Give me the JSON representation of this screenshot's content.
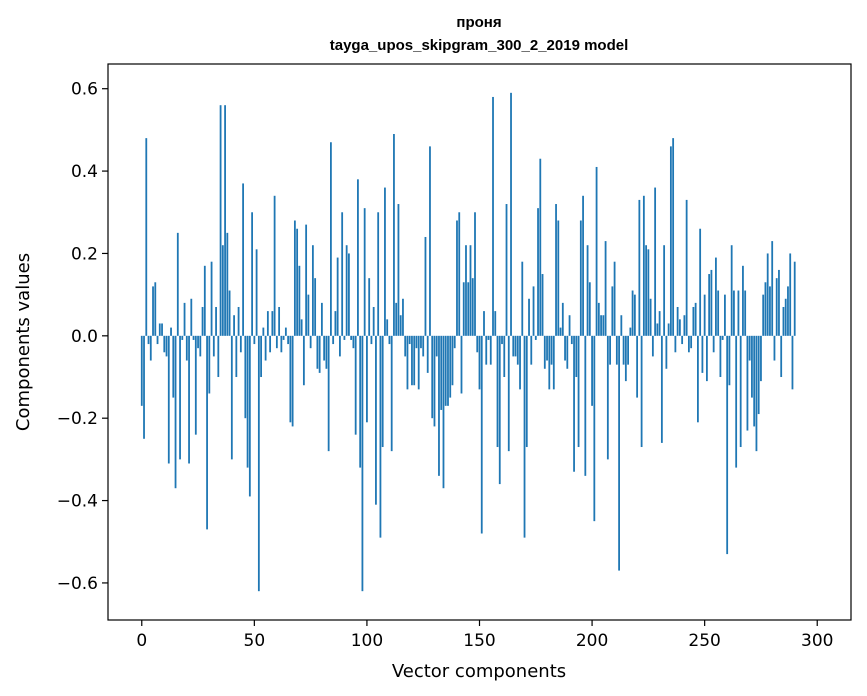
{
  "chart_data": {
    "type": "bar",
    "title": "проня",
    "subtitle": "tayga_upos_skipgram_300_2_2019 model",
    "xlabel": "Vector components",
    "ylabel": "Components values",
    "xlim": [
      -15,
      315
    ],
    "ylim": [
      -0.69,
      0.66
    ],
    "xticks": [
      0,
      50,
      100,
      150,
      200,
      250,
      300
    ],
    "yticks": [
      -0.6,
      -0.4,
      -0.2,
      0.0,
      0.2,
      0.4,
      0.6
    ],
    "ytick_labels": [
      "−0.6",
      "−0.4",
      "−0.2",
      "0.0",
      "0.2",
      "0.4",
      "0.6"
    ],
    "bar_color": "#1f77b4",
    "grid": false,
    "values": [
      -0.17,
      -0.25,
      0.48,
      -0.02,
      -0.06,
      0.12,
      0.13,
      -0.02,
      0.03,
      0.03,
      -0.04,
      -0.05,
      -0.31,
      0.02,
      -0.15,
      -0.37,
      0.25,
      -0.3,
      -0.01,
      0.08,
      -0.06,
      -0.31,
      0.09,
      -0.01,
      -0.24,
      -0.03,
      -0.05,
      0.07,
      0.17,
      -0.47,
      -0.14,
      0.18,
      -0.05,
      0.07,
      -0.1,
      0.56,
      0.22,
      0.56,
      0.25,
      0.11,
      -0.3,
      0.05,
      -0.1,
      0.07,
      -0.04,
      0.37,
      -0.2,
      -0.32,
      -0.39,
      0.3,
      -0.02,
      0.21,
      -0.62,
      -0.1,
      0.02,
      -0.06,
      0.06,
      -0.04,
      0.06,
      0.34,
      -0.03,
      0.07,
      -0.04,
      -0.01,
      0.02,
      -0.02,
      -0.21,
      -0.22,
      0.28,
      0.26,
      0.17,
      0.04,
      -0.12,
      0.27,
      0.1,
      -0.03,
      0.22,
      0.14,
      -0.08,
      -0.09,
      0.08,
      -0.06,
      -0.08,
      -0.28,
      0.47,
      -0.02,
      0.06,
      0.19,
      -0.05,
      0.3,
      -0.01,
      0.22,
      0.2,
      -0.01,
      -0.03,
      -0.24,
      0.38,
      -0.32,
      -0.62,
      0.31,
      -0.21,
      0.14,
      -0.02,
      0.07,
      -0.41,
      0.3,
      -0.49,
      -0.27,
      0.36,
      0.04,
      -0.02,
      -0.28,
      0.49,
      0.08,
      0.32,
      0.05,
      0.09,
      -0.05,
      -0.13,
      -0.02,
      -0.12,
      -0.12,
      -0.03,
      -0.13,
      -0.03,
      -0.05,
      0.24,
      -0.09,
      0.46,
      -0.2,
      -0.22,
      -0.05,
      -0.34,
      -0.18,
      -0.37,
      -0.17,
      -0.17,
      -0.15,
      -0.12,
      -0.03,
      0.28,
      0.3,
      -0.14,
      0.13,
      0.22,
      0.13,
      0.22,
      0.14,
      0.3,
      -0.04,
      -0.13,
      -0.48,
      0.06,
      -0.07,
      -0.01,
      -0.07,
      0.58,
      0.06,
      -0.27,
      -0.36,
      -0.02,
      -0.1,
      0.32,
      -0.28,
      0.59,
      -0.05,
      -0.05,
      -0.07,
      -0.13,
      0.18,
      -0.49,
      -0.27,
      0.09,
      -0.07,
      0.12,
      -0.01,
      0.31,
      0.43,
      0.15,
      -0.08,
      -0.06,
      -0.13,
      -0.07,
      -0.13,
      0.32,
      0.28,
      0.02,
      0.08,
      -0.06,
      -0.08,
      0.05,
      -0.02,
      -0.33,
      -0.1,
      -0.27,
      0.28,
      0.34,
      -0.34,
      0.22,
      0.13,
      -0.17,
      -0.45,
      0.41,
      0.08,
      0.05,
      0.05,
      0.23,
      -0.3,
      -0.07,
      0.12,
      0.18,
      -0.07,
      -0.57,
      0.05,
      -0.07,
      -0.11,
      -0.07,
      0.02,
      0.11,
      0.1,
      -0.15,
      0.33,
      -0.27,
      0.34,
      0.22,
      0.21,
      0.09,
      -0.05,
      0.36,
      0.03,
      0.06,
      -0.26,
      0.22,
      -0.08,
      0.03,
      0.46,
      0.48,
      -0.04,
      0.07,
      0.04,
      -0.02,
      0.05,
      0.33,
      -0.04,
      -0.03,
      0.07,
      0.08,
      -0.21,
      0.26,
      -0.09,
      0.1,
      -0.11,
      0.15,
      0.16,
      -0.04,
      0.19,
      0.11,
      -0.1,
      -0.01,
      0.1,
      -0.53,
      -0.12,
      0.22,
      0.11,
      -0.32,
      0.11,
      -0.27,
      0.17,
      0.11,
      -0.23,
      -0.06,
      -0.15,
      -0.22,
      -0.28,
      -0.19,
      -0.11,
      0.1,
      0.13,
      0.2,
      0.12,
      0.23,
      -0.06,
      0.14,
      0.16,
      -0.1,
      0.07,
      0.09,
      0.12,
      0.2,
      -0.13,
      0.18
    ]
  }
}
